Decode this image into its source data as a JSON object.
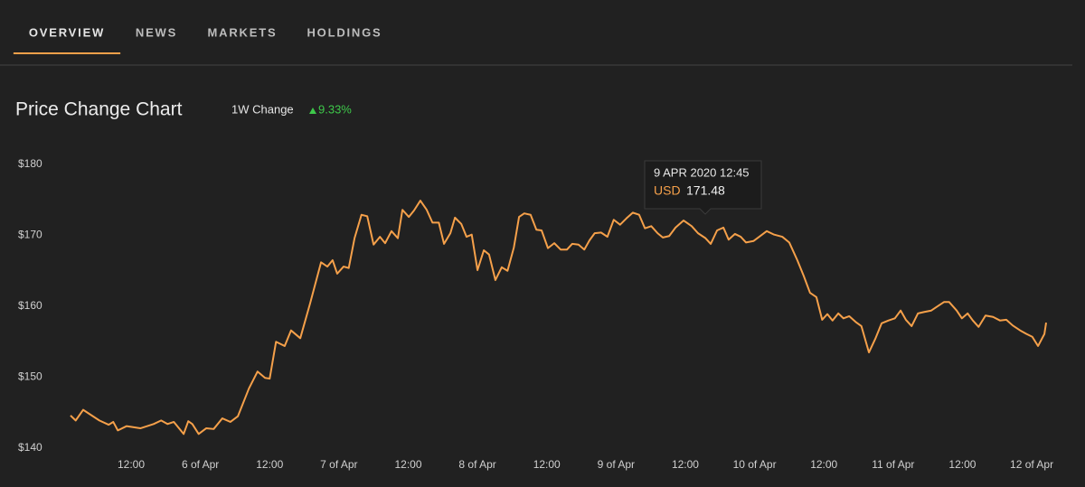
{
  "tabs": [
    {
      "label": "OVERVIEW",
      "active": true
    },
    {
      "label": "NEWS",
      "active": false
    },
    {
      "label": "MARKETS",
      "active": false
    },
    {
      "label": "HOLDINGS",
      "active": false
    }
  ],
  "header": {
    "title": "Price Change Chart",
    "change_label": "1W Change",
    "change_value": "9.33%"
  },
  "chart_data": {
    "type": "line",
    "color": "#f5a04a",
    "x": [
      1.5,
      2.4,
      3.7,
      6.5,
      8.1,
      8.9,
      9.7,
      11.2,
      13.6,
      15.9,
      17.2,
      18.3,
      19.4,
      21.1,
      21.9,
      22.6,
      23.7,
      25.0,
      26.3,
      27.8,
      29.2,
      30.5,
      32.4,
      33.9,
      35.2,
      36.0,
      37.1,
      38.6,
      39.7,
      41.3,
      43.0,
      44.9,
      46.0,
      46.9,
      47.7,
      48.8,
      49.7,
      50.7,
      51.9,
      52.9,
      54.0,
      55.1,
      56.0,
      57.1,
      58.2,
      59.0,
      60.1,
      61.0,
      62.1,
      63.2,
      64.2,
      65.3,
      66.2,
      67.3,
      68.1,
      69.2,
      70.1,
      71.0,
      72.0,
      73.1,
      74.0,
      75.1,
      76.2,
      77.2,
      78.3,
      79.2,
      80.1,
      81.2,
      82.2,
      83.1,
      84.2,
      85.3,
      86.4,
      87.5,
      88.4,
      89.5,
      90.5,
      91.4,
      92.3,
      93.4,
      94.5,
      95.6,
      96.7,
      97.8,
      98.9,
      100.0,
      101.0,
      102.1,
      103.2,
      104.1,
      105.2,
      106.3,
      107.7,
      109.1,
      110.2,
      111.5,
      112.4,
      113.5,
      114.6,
      115.5,
      116.6,
      117.6,
      118.5,
      119.8,
      120.8,
      122.1,
      123.4,
      124.8,
      126.0,
      127.4,
      128.5,
      129.6,
      130.7,
      131.7,
      132.6,
      133.5,
      134.5,
      135.4,
      136.4,
      137.5,
      138.5,
      139.8,
      140.9,
      142.0,
      143.2,
      144.3,
      145.3,
      146.2,
      147.2,
      148.3,
      149.4,
      150.6,
      151.5,
      152.8,
      153.7,
      155.0,
      155.9,
      156.9,
      157.8,
      158.8,
      160.0,
      161.3,
      162.5,
      163.6,
      164.7,
      166.0,
      167.1,
      168.1,
      169.1,
      170.2,
      170.5
    ],
    "values": [
      144.6,
      143.9,
      145.4,
      143.9,
      143.3,
      143.7,
      142.5,
      143.1,
      142.8,
      143.4,
      143.9,
      143.4,
      143.7,
      142.0,
      143.8,
      143.4,
      142.0,
      142.8,
      142.7,
      144.2,
      143.7,
      144.5,
      148.4,
      150.8,
      149.9,
      149.8,
      155.0,
      154.4,
      156.6,
      155.5,
      160.4,
      166.2,
      165.6,
      166.5,
      164.6,
      165.6,
      165.4,
      169.6,
      172.9,
      172.7,
      168.7,
      169.8,
      168.9,
      170.6,
      169.6,
      173.6,
      172.6,
      173.5,
      174.9,
      173.6,
      171.8,
      171.8,
      168.8,
      170.3,
      172.5,
      171.6,
      169.8,
      170.1,
      165.1,
      167.9,
      167.3,
      163.7,
      165.5,
      165.0,
      168.3,
      172.6,
      173.1,
      172.9,
      170.8,
      170.7,
      168.2,
      168.9,
      168.0,
      168.0,
      168.8,
      168.7,
      168.0,
      169.3,
      170.3,
      170.4,
      169.8,
      172.2,
      171.5,
      172.4,
      173.2,
      172.9,
      171.0,
      171.3,
      170.3,
      169.7,
      169.9,
      171.1,
      172.1,
      171.3,
      170.3,
      169.6,
      168.8,
      170.7,
      171.1,
      169.4,
      170.2,
      169.8,
      169.0,
      169.2,
      169.8,
      170.6,
      170.1,
      169.8,
      169.0,
      166.5,
      164.3,
      161.9,
      161.3,
      158.1,
      158.9,
      158.0,
      159.0,
      158.3,
      158.6,
      157.8,
      157.2,
      153.5,
      155.4,
      157.6,
      158.0,
      158.3,
      159.4,
      158.1,
      157.2,
      159.0,
      159.2,
      159.4,
      159.9,
      160.6,
      160.6,
      159.4,
      158.3,
      159.0,
      158.0,
      157.1,
      158.7,
      158.5,
      158.0,
      158.1,
      157.3,
      156.6,
      156.1,
      155.7,
      154.4,
      156.1,
      157.7
    ],
    "xlim": [
      0,
      172
    ],
    "xticks": [
      {
        "value": 12,
        "label": "12:00"
      },
      {
        "value": 24,
        "label": "6 of Apr"
      },
      {
        "value": 36,
        "label": "12:00"
      },
      {
        "value": 48,
        "label": "7 of Apr"
      },
      {
        "value": 60,
        "label": "12:00"
      },
      {
        "value": 72,
        "label": "8 of Apr"
      },
      {
        "value": 84,
        "label": "12:00"
      },
      {
        "value": 96,
        "label": "9 of Apr"
      },
      {
        "value": 108,
        "label": "12:00"
      },
      {
        "value": 120,
        "label": "10 of Apr"
      },
      {
        "value": 132,
        "label": "12:00"
      },
      {
        "value": 144,
        "label": "11 of Apr"
      },
      {
        "value": 156,
        "label": "12:00"
      },
      {
        "value": 168,
        "label": "12 of Apr"
      }
    ],
    "ylim": [
      140,
      180
    ],
    "yticks": [
      {
        "value": 140,
        "label": "$140"
      },
      {
        "value": 150,
        "label": "$150"
      },
      {
        "value": 160,
        "label": "$160"
      },
      {
        "value": 170,
        "label": "$170"
      },
      {
        "value": 180,
        "label": "$180"
      }
    ],
    "grid": false,
    "tooltip": {
      "title": "9 APR 2020 12:45",
      "currency": "USD",
      "value": 171.48
    }
  }
}
